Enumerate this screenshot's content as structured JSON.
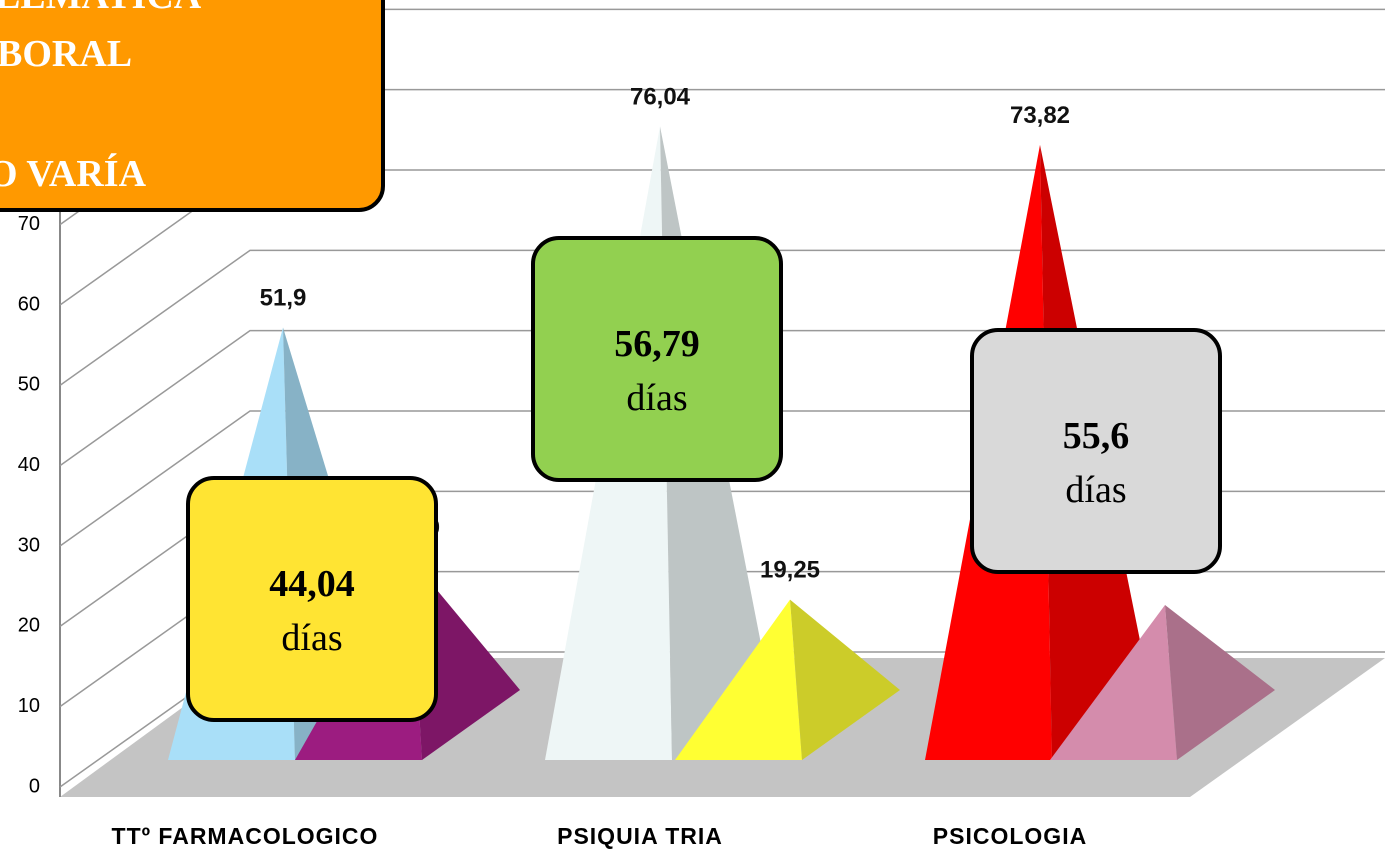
{
  "chart_data": {
    "type": "pyramid3d",
    "categories": [
      "TTº FARMACOLOGICO",
      "PSIQUIA TRIA",
      "PSICOLOGIA"
    ],
    "series": [
      {
        "values": [
          51.9,
          76.04,
          73.82
        ],
        "value_labels": [
          "51,9",
          "76,04",
          "73,82"
        ],
        "colors": [
          "#a9dff8",
          "#eef6f6",
          "#ff0000"
        ]
      },
      {
        "values": [
          24.29,
          19.25,
          18.6
        ],
        "value_labels": [
          "24,29",
          "19,25",
          null
        ],
        "colors": [
          "#9c1c80",
          "#ffff33",
          "#d48cac"
        ]
      }
    ],
    "ylim": [
      0,
      90
    ],
    "yticks": [
      0,
      10,
      20,
      30,
      40,
      50,
      60,
      70,
      80,
      90
    ],
    "grid": true,
    "annotations": [
      {
        "text": "44,04",
        "subtext": "días",
        "color": "#ffe433"
      },
      {
        "text": "56,79",
        "subtext": "días",
        "color": "#92d050"
      },
      {
        "text": "55,6",
        "subtext": "días",
        "color": "#d9d9d9"
      }
    ],
    "banner": {
      "lines": [
        "LEMATICA",
        "BORAL",
        "O VARÍA"
      ],
      "color": "#ff9900",
      "accent": "#2e75b6"
    }
  }
}
